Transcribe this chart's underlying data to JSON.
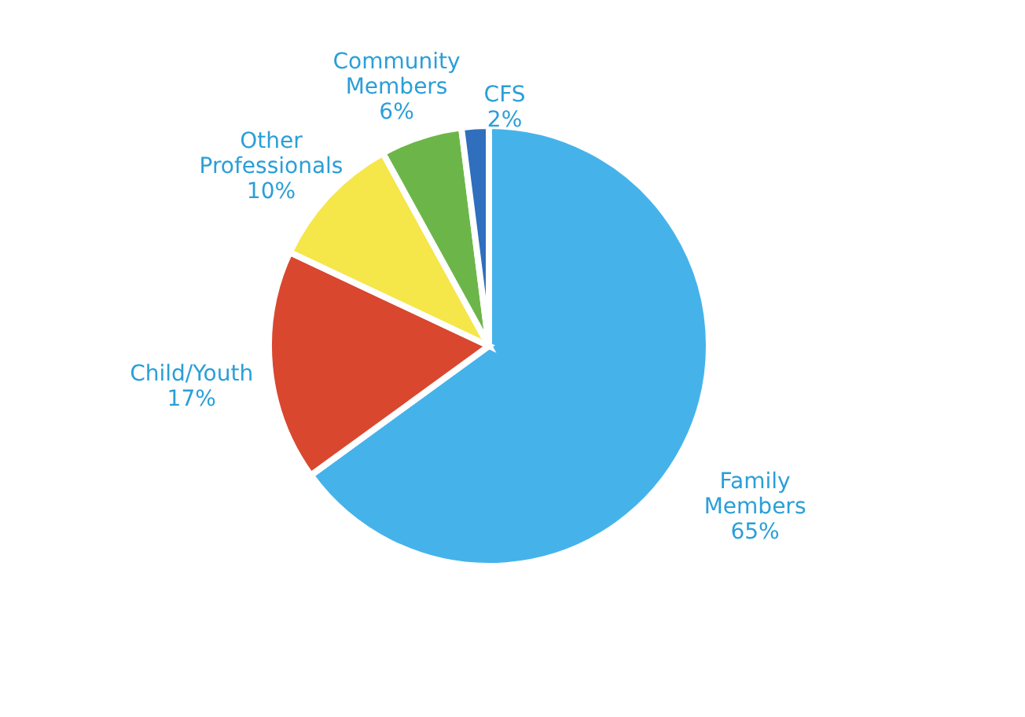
{
  "chart_data": {
    "type": "pie",
    "categories": [
      "Family Members",
      "Child/Youth",
      "Other Professionals",
      "Community Members",
      "CFS"
    ],
    "values": [
      65,
      17,
      10,
      6,
      2
    ],
    "colors": [
      "#45b3ea",
      "#d9472f",
      "#f5e64a",
      "#6cb649",
      "#2f6fbd"
    ],
    "value_labels": [
      "65%",
      "17%",
      "10%",
      "6%",
      "2%"
    ]
  }
}
